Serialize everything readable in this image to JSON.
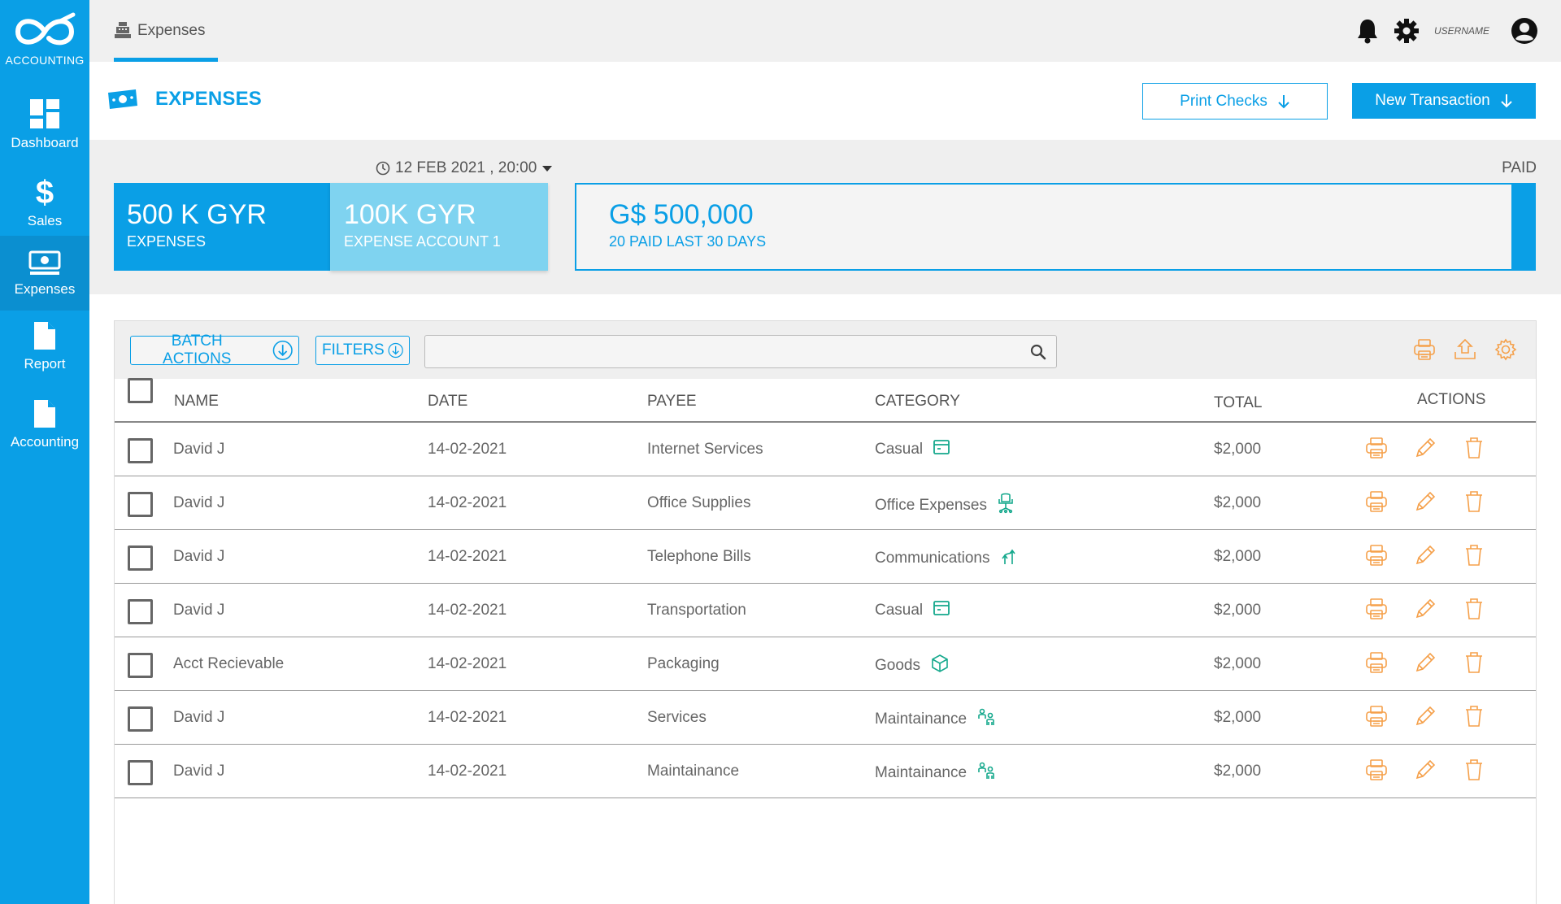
{
  "app": {
    "logo_text": "ACCOUNTING"
  },
  "sidebar": {
    "items": [
      {
        "label": "Dashboard",
        "icon": "dashboard-icon"
      },
      {
        "label": "Sales",
        "icon": "dollar-icon"
      },
      {
        "label": "Expenses",
        "icon": "cash-icon",
        "active": true
      },
      {
        "label": "Report",
        "icon": "document-icon"
      },
      {
        "label": "Accounting",
        "icon": "document-icon"
      }
    ]
  },
  "topbar": {
    "tab_label": "Expenses",
    "tab_icon": "cash-register-icon",
    "username": "USERNAME",
    "icons": [
      "bell-icon",
      "gear-icon",
      "user-avatar-icon"
    ]
  },
  "page": {
    "title": "EXPENSES",
    "print_checks_label": "Print Checks",
    "new_transaction_label": "New Transaction"
  },
  "summary": {
    "date": "12 FEB 2021 , 20:00",
    "paid_label": "PAID",
    "card1": {
      "value": "500 K GYR",
      "label": "EXPENSES"
    },
    "card2": {
      "value": "100K GYR",
      "label": "EXPENSE ACCOUNT 1"
    },
    "card3": {
      "value": "G$ 500,000",
      "label": "20  PAID LAST 30 DAYS"
    }
  },
  "toolbar": {
    "batch_actions_label": "BATCH ACTIONS",
    "filters_label": "FILTERS",
    "search_value": "",
    "search_placeholder": "",
    "icons": [
      "printer-icon",
      "upload-icon",
      "settings-icon"
    ]
  },
  "table": {
    "headers": {
      "name": "NAME",
      "date": "DATE",
      "payee": "PAYEE",
      "category": "CATEGORY",
      "total": "TOTAL",
      "actions": "ACTIONS"
    },
    "rows": [
      {
        "name": "David J",
        "date": "14-02-2021",
        "payee": "Internet Services",
        "category": "Casual",
        "category_icon": "card-icon",
        "total": "$2,000"
      },
      {
        "name": "David J",
        "date": "14-02-2021",
        "payee": "Office Supplies",
        "category": "Office Expenses",
        "category_icon": "office-chair-icon",
        "total": "$2,000"
      },
      {
        "name": "David J",
        "date": "14-02-2021",
        "payee": "Telephone Bills",
        "category": "Communications",
        "category_icon": "communications-icon",
        "total": "$2,000"
      },
      {
        "name": "David J",
        "date": "14-02-2021",
        "payee": "Transportation",
        "category": "Casual",
        "category_icon": "card-icon",
        "total": "$2,000"
      },
      {
        "name": "Acct Recievable",
        "date": "14-02-2021",
        "payee": "Packaging",
        "category": "Goods",
        "category_icon": "box-icon",
        "total": "$2,000"
      },
      {
        "name": "David J",
        "date": "14-02-2021",
        "payee": "Services",
        "category": "Maintainance",
        "category_icon": "people-icon",
        "total": "$2,000"
      },
      {
        "name": "David J",
        "date": "14-02-2021",
        "payee": "Maintainance",
        "category": "Maintainance",
        "category_icon": "people-icon",
        "total": "$2,000"
      }
    ]
  },
  "colors": {
    "primary": "#0a9fe6",
    "light_primary": "#7fd3f0",
    "action_orange": "#f5a04a",
    "category_teal": "#14a88c"
  }
}
